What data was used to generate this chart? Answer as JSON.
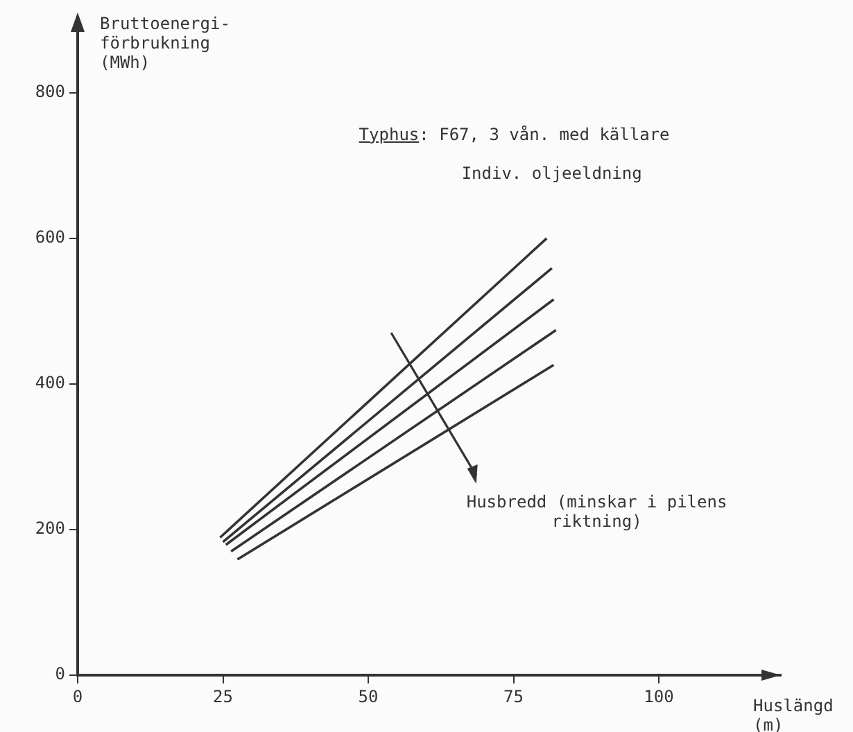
{
  "chart_data": {
    "type": "line",
    "xlabel": "Huslängd\n(m)",
    "ylabel": "Bruttoenergi-\nförbrukning\n(MWh)",
    "annotations": [
      "Typhus: F67, 3 vån. med källare",
      "Indiv. oljeeldning",
      "Husbredd (minskar i pilens\nriktning)"
    ],
    "series": [
      {
        "color": "#333333",
        "x": [
          24.5,
          80.7
        ],
        "values": [
          189,
          600
        ]
      },
      {
        "color": "#333333",
        "x": [
          25.0,
          81.6
        ],
        "values": [
          183,
          559
        ]
      },
      {
        "color": "#333333",
        "x": [
          25.5,
          81.9
        ],
        "values": [
          179,
          516
        ]
      },
      {
        "color": "#333333",
        "x": [
          26.4,
          82.3
        ],
        "values": [
          170,
          474
        ]
      },
      {
        "color": "#333333",
        "x": [
          27.5,
          81.9
        ],
        "values": [
          159,
          426
        ]
      }
    ],
    "xlim": [
      0,
      121
    ],
    "ylim": [
      0,
      895
    ],
    "xticks": [
      0,
      25,
      50,
      75,
      100
    ],
    "yticks": [
      0,
      200,
      400,
      600,
      800
    ],
    "grid": false,
    "legend": false,
    "marker": "none",
    "line_style": "solid"
  }
}
